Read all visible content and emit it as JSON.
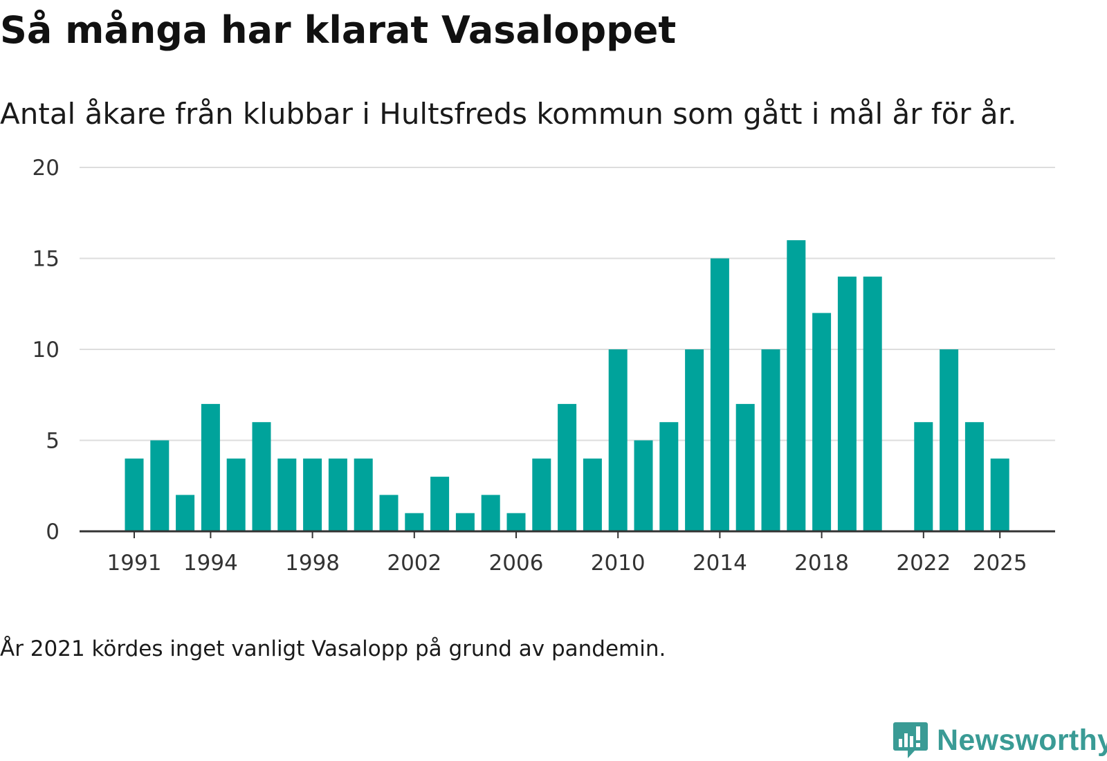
{
  "title": "Så många har klarat Vasaloppet",
  "subtitle": "Antal åkare från klubbar i Hultsfreds kommun som gått i mål år för år.",
  "footnote": "År 2021 kördes inget vanligt Vasalopp på grund av pandemin.",
  "brand": {
    "name": "Newsworthy",
    "logo_icon": "bar-chart-speech-bubble-icon",
    "color": "#3a9b95"
  },
  "chart_data": {
    "type": "bar",
    "title": "Så många har klarat Vasaloppet",
    "subtitle": "Antal åkare från klubbar i Hultsfreds kommun som gått i mål år för år.",
    "xlabel": "",
    "ylabel": "",
    "categories": [
      1991,
      1992,
      1993,
      1994,
      1995,
      1996,
      1997,
      1998,
      1999,
      2000,
      2001,
      2002,
      2003,
      2004,
      2005,
      2006,
      2007,
      2008,
      2009,
      2010,
      2011,
      2012,
      2013,
      2014,
      2015,
      2016,
      2017,
      2018,
      2019,
      2020,
      2021,
      2022,
      2023,
      2024,
      2025
    ],
    "values": [
      4,
      5,
      2,
      7,
      4,
      6,
      4,
      4,
      4,
      4,
      2,
      1,
      3,
      1,
      2,
      1,
      4,
      7,
      4,
      10,
      5,
      6,
      10,
      15,
      7,
      10,
      16,
      12,
      14,
      14,
      null,
      6,
      10,
      6,
      4
    ],
    "x_tick_labels": [
      "1991",
      "1994",
      "1998",
      "2002",
      "2006",
      "2010",
      "2014",
      "2018",
      "2022",
      "2025"
    ],
    "y_tick_labels": [
      "0",
      "5",
      "10",
      "15",
      "20"
    ],
    "ylim": [
      0,
      20
    ],
    "grid": true,
    "legend": "none",
    "bar_color": "#00a39b"
  }
}
